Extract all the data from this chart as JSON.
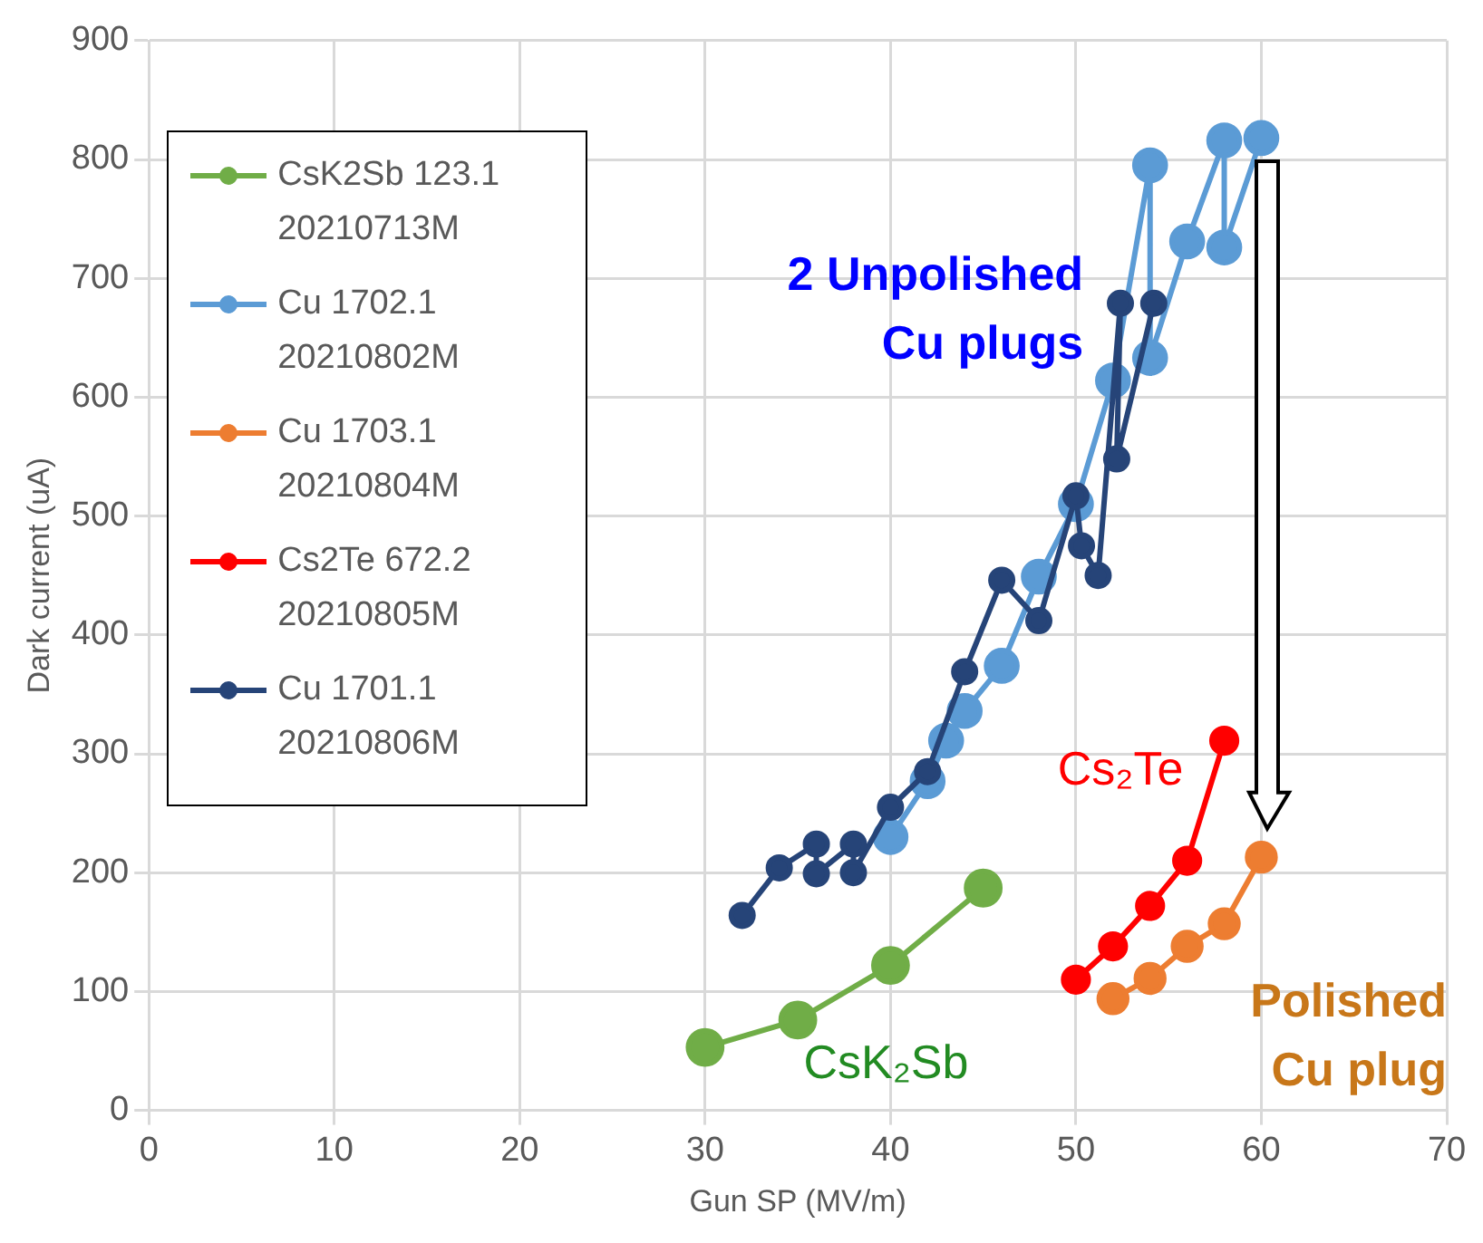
{
  "chart_data": {
    "type": "line",
    "xlabel": "Gun SP (MV/m)",
    "ylabel": "Dark current (uA)",
    "xlim": [
      0,
      70
    ],
    "xticks": [
      0,
      10,
      20,
      30,
      40,
      50,
      60,
      70
    ],
    "ylim": [
      0,
      900
    ],
    "yticks": [
      0,
      100,
      200,
      300,
      400,
      500,
      600,
      700,
      800,
      900
    ],
    "grid": true,
    "legend": "top left",
    "marker": "circle",
    "line_style": "solid",
    "series": [
      {
        "name": "CsK2Sb 123.1 20210713M",
        "color": "#70ad47",
        "x": [
          30,
          35,
          40,
          45
        ],
        "values": [
          53,
          76,
          122,
          187
        ]
      },
      {
        "name": "Cu 1702.1 20210802M",
        "color": "#5b9bd5",
        "x": [
          40,
          42,
          43,
          44,
          46,
          48,
          50,
          52,
          54,
          54,
          56,
          58,
          58,
          60
        ],
        "values": [
          230,
          277,
          311,
          336,
          374,
          449,
          510,
          614,
          795,
          633,
          731,
          816,
          726,
          818
        ]
      },
      {
        "name": "Cu 1703.1 20210804M",
        "color": "#ed7d31",
        "x": [
          52,
          54,
          56,
          58,
          60
        ],
        "values": [
          94,
          111,
          138,
          157,
          213
        ]
      },
      {
        "name": "Cs2Te 672.2 20210805M",
        "color": "#ff0000",
        "x": [
          50,
          52,
          54,
          56,
          58
        ],
        "values": [
          110,
          138,
          172,
          210,
          311
        ]
      },
      {
        "name": "Cu 1701.1 20210806M",
        "color": "#264478",
        "x": [
          32,
          34,
          36,
          36,
          38,
          38,
          40,
          42,
          44,
          46,
          48,
          50,
          50.3,
          51.2,
          52.4,
          52.2,
          54.2
        ],
        "values": [
          164,
          204,
          224,
          199,
          224,
          200,
          255,
          285,
          369,
          446,
          412,
          517,
          475,
          450,
          679,
          548,
          679
        ]
      }
    ],
    "annotations": [
      "2 Unpolished Cu plugs",
      "Cs₂Te",
      "CsK₂Sb",
      "Polished Cu plug"
    ]
  }
}
